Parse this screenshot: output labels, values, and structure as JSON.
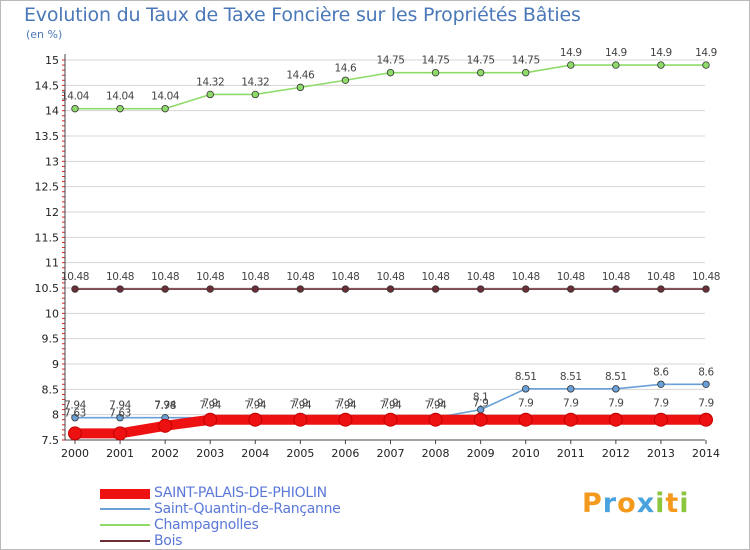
{
  "chart_data": {
    "type": "line",
    "title": "Evolution du Taux de Taxe Foncière sur les Propriétés Bâties",
    "unit_label": "(en %)",
    "x": [
      "2000",
      "2001",
      "2002",
      "2003",
      "2004",
      "2005",
      "2006",
      "2007",
      "2008",
      "2009",
      "2010",
      "2011",
      "2012",
      "2013",
      "2014"
    ],
    "ylim": [
      7.5,
      15
    ],
    "yticks": [
      "7.5",
      "8",
      "8.5",
      "9",
      "9.5",
      "10",
      "10.5",
      "11",
      "11.5",
      "12",
      "12.5",
      "13",
      "13.5",
      "14",
      "14.5",
      "15"
    ],
    "series": [
      {
        "name": "Bois",
        "color": "#6b2e36",
        "values": [
          10.48,
          10.48,
          10.48,
          10.48,
          10.48,
          10.48,
          10.48,
          10.48,
          10.48,
          10.48,
          10.48,
          10.48,
          10.48,
          10.48,
          10.48
        ],
        "labels": [
          "10.48",
          "10.48",
          "10.48",
          "10.48",
          "10.48",
          "10.48",
          "10.48",
          "10.48",
          "10.48",
          "10.48",
          "10.48",
          "10.48",
          "10.48",
          "10.48",
          "10.48"
        ]
      },
      {
        "name": "Champagnolles",
        "color": "#8fdb6a",
        "values": [
          14.04,
          14.04,
          14.04,
          14.32,
          14.32,
          14.46,
          14.6,
          14.75,
          14.75,
          14.75,
          14.75,
          14.9,
          14.9,
          14.9,
          14.9
        ],
        "labels": [
          "14.04",
          "14.04",
          "14.04",
          "14.32",
          "14.32",
          "14.46",
          "14.6",
          "14.75",
          "14.75",
          "14.75",
          "14.75",
          "14.9",
          "14.9",
          "14.9",
          "14.9"
        ]
      },
      {
        "name": "Saint-Quantin-de-Rançanne",
        "color": "#6aa0d8",
        "values": [
          7.94,
          7.94,
          7.94,
          7.94,
          7.94,
          7.94,
          7.94,
          7.94,
          7.94,
          8.1,
          8.51,
          8.51,
          8.51,
          8.6,
          8.6
        ],
        "labels": [
          "7.94",
          "7.94",
          "7.94",
          "7.94",
          "7.94",
          "7.94",
          "7.94",
          "7.94",
          "7.94",
          "8.1",
          "8.51",
          "8.51",
          "8.51",
          "8.6",
          "8.6"
        ]
      },
      {
        "name": "SAINT-PALAIS-DE-PHIOLIN",
        "color": "#ee1111",
        "values": [
          7.63,
          7.63,
          7.78,
          7.9,
          7.9,
          7.9,
          7.9,
          7.9,
          7.9,
          7.9,
          7.9,
          7.9,
          7.9,
          7.9,
          7.9
        ],
        "labels": [
          "7.63",
          "7.63",
          "7.78",
          "7.9",
          "7.9",
          "7.9",
          "7.9",
          "7.9",
          "7.9",
          "7.9",
          "7.9",
          "7.9",
          "7.9",
          "7.9",
          "7.9"
        ]
      }
    ],
    "legend": [
      {
        "name": "SAINT-PALAIS-DE-PHIOLIN",
        "color": "#ee1111"
      },
      {
        "name": "Saint-Quantin-de-Rançanne",
        "color": "#6aa0d8"
      },
      {
        "name": "Champagnolles",
        "color": "#8fdb6a"
      },
      {
        "name": "Bois",
        "color": "#6b2e36"
      }
    ]
  },
  "logo": {
    "letters": [
      "P",
      "r",
      "o",
      "x",
      "i",
      "t",
      "i"
    ],
    "colors": [
      "#f39a1e",
      "#4aa3df",
      "#f39a1e",
      "#4aa3df",
      "#8cc63f",
      "#f39a1e",
      "#8cc63f"
    ]
  }
}
